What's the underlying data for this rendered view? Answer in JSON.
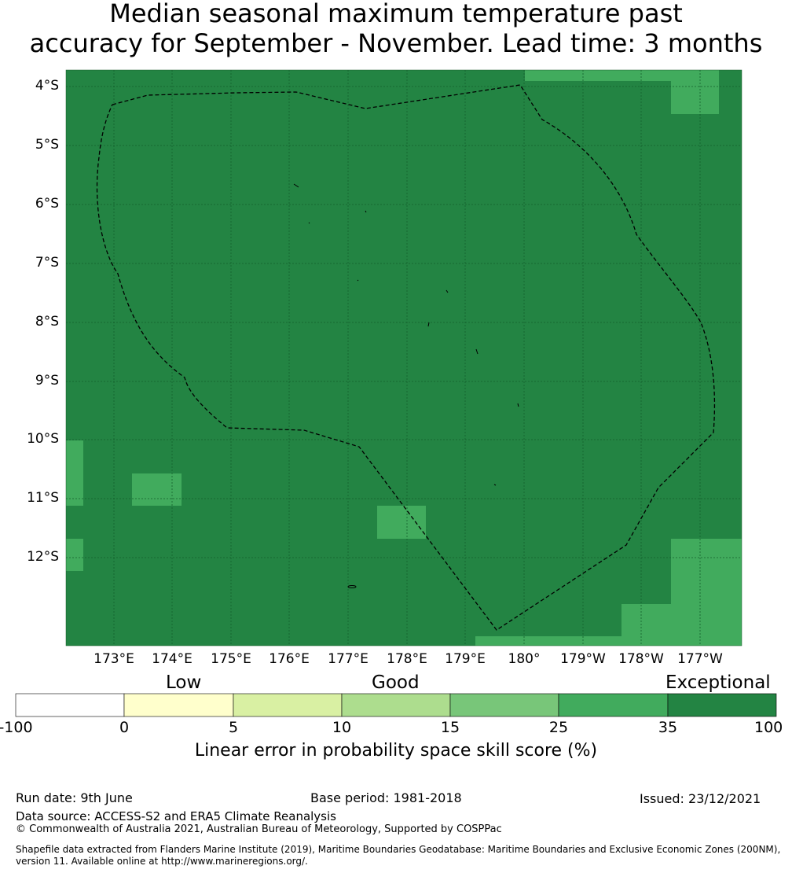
{
  "title": {
    "line1": "Median seasonal maximum temperature past",
    "line2": "accuracy for September - November. Lead time: 3 months"
  },
  "map": {
    "lat_labels": [
      "4°S",
      "5°S",
      "6°S",
      "7°S",
      "8°S",
      "9°S",
      "10°S",
      "11°S",
      "12°S"
    ],
    "lon_labels": [
      "173°E",
      "174°E",
      "175°E",
      "176°E",
      "177°E",
      "178°E",
      "179°E",
      "180°",
      "179°W",
      "178°W",
      "177°W"
    ],
    "colors": {
      "exceptional": "#238443",
      "very_good": "#41ab5d",
      "boundary_line": "#000000"
    }
  },
  "colorbar": {
    "category_labels": {
      "low": "Low",
      "good": "Good",
      "exceptional": "Exceptional"
    },
    "ticks": [
      "-100",
      "0",
      "5",
      "10",
      "15",
      "25",
      "35",
      "100"
    ],
    "colors": [
      "#ffffff",
      "#ffffcc",
      "#d9f0a3",
      "#addd8e",
      "#78c679",
      "#41ab5d",
      "#238443"
    ],
    "title": "Linear error in probability space skill score (%)"
  },
  "footer": {
    "run_date": "Run date: 9th June",
    "base_period": "Base period: 1981-2018",
    "issued": "Issued: 23/12/2021",
    "data_source": "Data source: ACCESS-S2 and ERA5 Climate Reanalysis",
    "copyright": "© Commonwealth of Australia 2021, Australian Bureau of Meteorology, Supported by COSPPac",
    "shapefile_line1": "Shapefile data extracted from Flanders Marine Institute (2019), Maritime Boundaries Geodatabase: Maritime Boundaries and Exclusive Economic Zones (200NM),",
    "shapefile_line2": "version 11. Available online at http://www.marineregions.org/."
  }
}
